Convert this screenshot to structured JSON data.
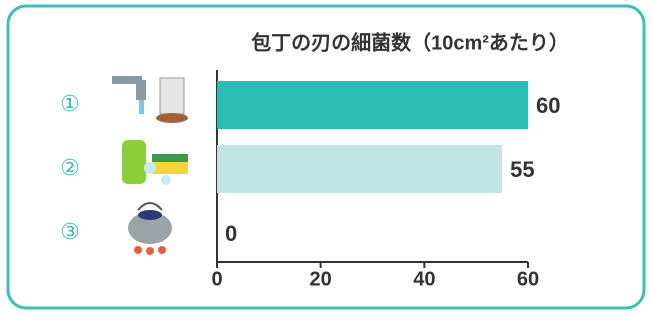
{
  "chart_data": {
    "type": "barh",
    "title": "包丁の刃の細菌数（10cm²あたり）",
    "categories": [
      "①",
      "②",
      "③"
    ],
    "values": [
      60,
      55,
      0
    ],
    "colors": [
      "#2bbdb3",
      "#c2e4e3",
      "#c2e4e3"
    ],
    "xlim": [
      0,
      60
    ],
    "xticks": [
      0,
      20,
      40,
      60
    ]
  }
}
